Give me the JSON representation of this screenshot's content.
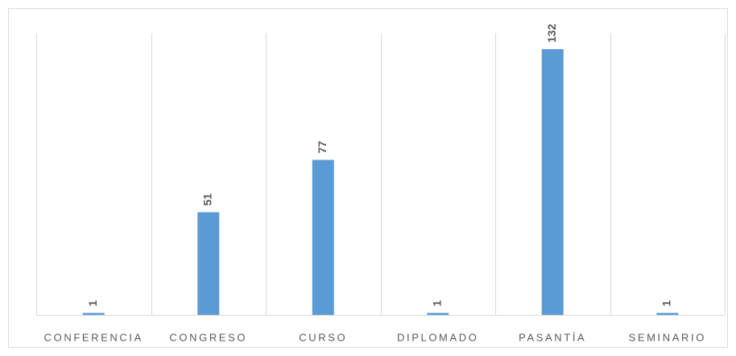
{
  "chart_data": {
    "type": "bar",
    "categories": [
      "CONFERENCIA",
      "CONGRESO",
      "CURSO",
      "DIPLOMADO",
      "PASANTÍA",
      "SEMINARIO"
    ],
    "values": [
      1,
      51,
      77,
      1,
      132,
      1
    ],
    "color": "#5b9bd5",
    "ylim": [
      0,
      140
    ],
    "grid": true
  }
}
